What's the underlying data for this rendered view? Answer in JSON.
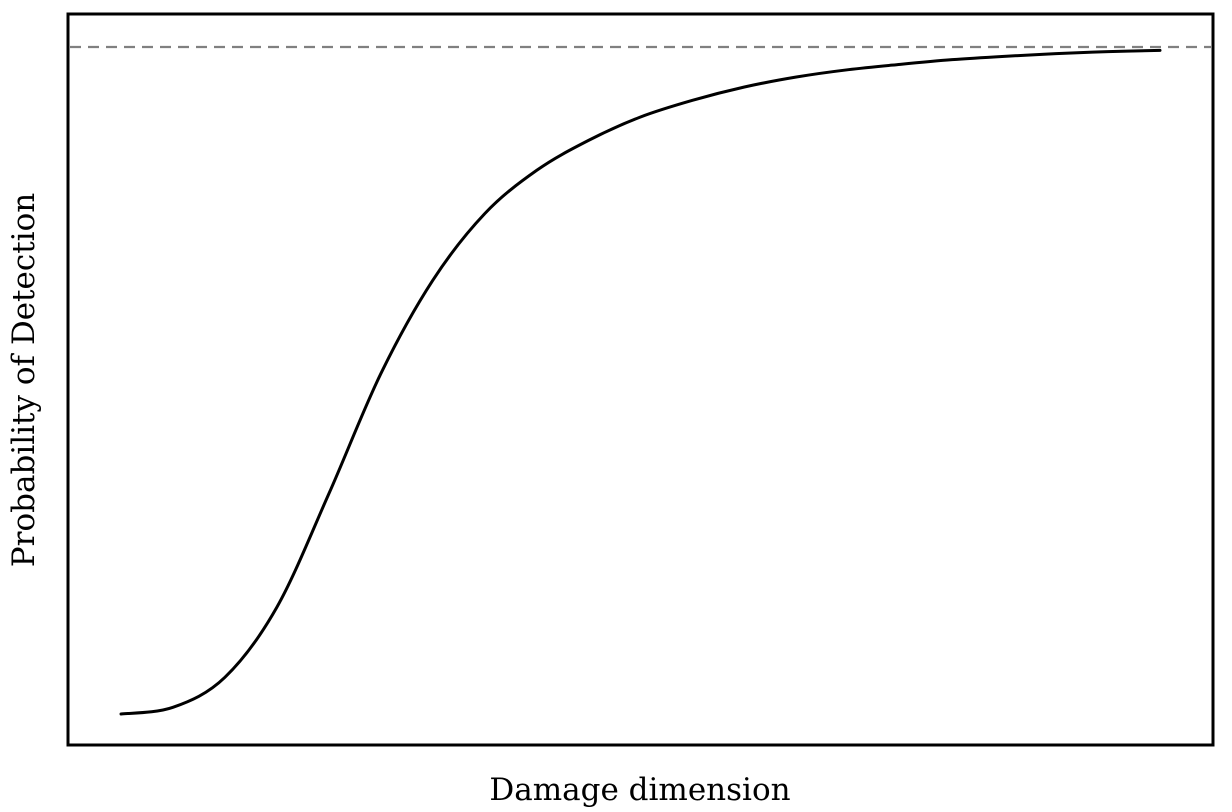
{
  "chart_data": {
    "type": "line",
    "title": "",
    "xlabel": "Damage dimension",
    "ylabel": "Probability of Detection",
    "xlim": [
      0,
      1
    ],
    "ylim": [
      0,
      1
    ],
    "grid": false,
    "legend": "none",
    "series": [
      {
        "color": "#000000",
        "style": "solid",
        "points": [
          [
            0.0,
            0.0
          ],
          [
            0.05,
            0.01
          ],
          [
            0.1,
            0.055
          ],
          [
            0.15,
            0.16
          ],
          [
            0.2,
            0.33
          ],
          [
            0.25,
            0.51
          ],
          [
            0.3,
            0.65
          ],
          [
            0.35,
            0.75
          ],
          [
            0.4,
            0.815
          ],
          [
            0.45,
            0.86
          ],
          [
            0.5,
            0.895
          ],
          [
            0.55,
            0.92
          ],
          [
            0.6,
            0.94
          ],
          [
            0.65,
            0.955
          ],
          [
            0.7,
            0.966
          ],
          [
            0.75,
            0.974
          ],
          [
            0.8,
            0.981
          ],
          [
            0.85,
            0.986
          ],
          [
            0.9,
            0.99
          ],
          [
            0.95,
            0.993
          ],
          [
            1.0,
            0.995
          ]
        ]
      }
    ],
    "reference_lines": [
      {
        "orientation": "horizontal",
        "y": 1.0,
        "style": "dashed",
        "color": "#808080"
      }
    ]
  }
}
